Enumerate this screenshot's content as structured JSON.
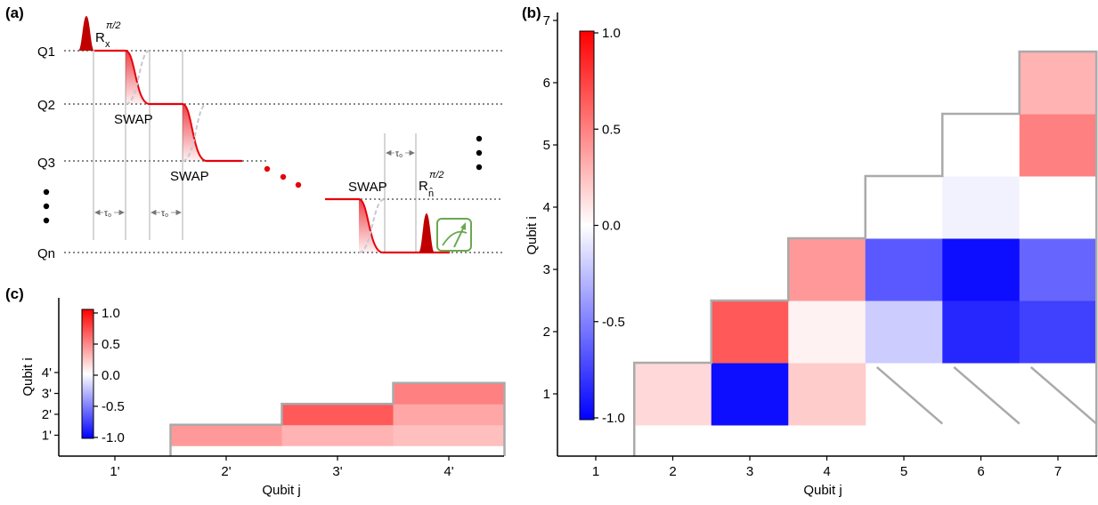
{
  "panels": {
    "a": "(a)",
    "b": "(b)",
    "c": "(c)"
  },
  "circuit": {
    "qubits": [
      "Q1",
      "Q2",
      "Q3",
      "Qn"
    ],
    "swap_label": "SWAP",
    "tau_label": "τ₀",
    "rx_base": "R",
    "rx_sub": "x",
    "rn_sub": "n̂",
    "pulse_sup": "π/2"
  },
  "colors": {
    "red": "#e8000a",
    "blue": "#1010ff",
    "frame": "#aaaaaa",
    "meter": "#6aa84f"
  },
  "colorbar": {
    "ticks": [
      "1.0",
      "0.5",
      "0.0",
      "-0.5",
      "-1.0"
    ]
  },
  "chart_data": [
    {
      "type": "heatmap",
      "panel": "b",
      "xlabel": "Qubit  j",
      "ylabel": "Qubit  i",
      "x_ticks": [
        "1",
        "2",
        "3",
        "4",
        "5",
        "6",
        "7"
      ],
      "y_ticks": [
        "1",
        "2",
        "3",
        "4",
        "5",
        "6",
        "7"
      ],
      "color_range": [
        -1.0,
        1.0
      ],
      "cells": [
        {
          "i": 1,
          "j": 2,
          "v": 0.15
        },
        {
          "i": 1,
          "j": 3,
          "v": -0.95
        },
        {
          "i": 1,
          "j": 4,
          "v": 0.2
        },
        {
          "i": 2,
          "j": 3,
          "v": 0.65
        },
        {
          "i": 2,
          "j": 4,
          "v": 0.05
        },
        {
          "i": 2,
          "j": 5,
          "v": -0.2
        },
        {
          "i": 2,
          "j": 6,
          "v": -0.85
        },
        {
          "i": 2,
          "j": 7,
          "v": -0.75
        },
        {
          "i": 3,
          "j": 4,
          "v": 0.4
        },
        {
          "i": 3,
          "j": 5,
          "v": -0.65
        },
        {
          "i": 3,
          "j": 6,
          "v": -0.95
        },
        {
          "i": 3,
          "j": 7,
          "v": -0.6
        },
        {
          "i": 4,
          "j": 5,
          "v": 0.0
        },
        {
          "i": 4,
          "j": 6,
          "v": -0.05
        },
        {
          "i": 4,
          "j": 7,
          "v": 0.0
        },
        {
          "i": 5,
          "j": 6,
          "v": 0.0
        },
        {
          "i": 5,
          "j": 7,
          "v": 0.5
        },
        {
          "i": 6,
          "j": 7,
          "v": 0.3
        }
      ],
      "hatched_cells": [
        {
          "i": 1,
          "j": 5
        },
        {
          "i": 1,
          "j": 6
        },
        {
          "i": 1,
          "j": 7
        }
      ]
    },
    {
      "type": "heatmap",
      "panel": "c",
      "xlabel": "Qubit  j",
      "ylabel": "Qubit  i",
      "x_ticks": [
        "1'",
        "2'",
        "3'",
        "4'"
      ],
      "y_ticks": [
        "1'",
        "2'",
        "3'",
        "4'"
      ],
      "color_range": [
        -1.0,
        1.0
      ],
      "cells": [
        {
          "i": 1,
          "j": 2,
          "v": 0.4
        },
        {
          "i": 1,
          "j": 3,
          "v": 0.3
        },
        {
          "i": 1,
          "j": 4,
          "v": 0.25
        },
        {
          "i": 2,
          "j": 3,
          "v": 0.65
        },
        {
          "i": 2,
          "j": 4,
          "v": 0.35
        },
        {
          "i": 3,
          "j": 4,
          "v": 0.5
        }
      ]
    }
  ]
}
